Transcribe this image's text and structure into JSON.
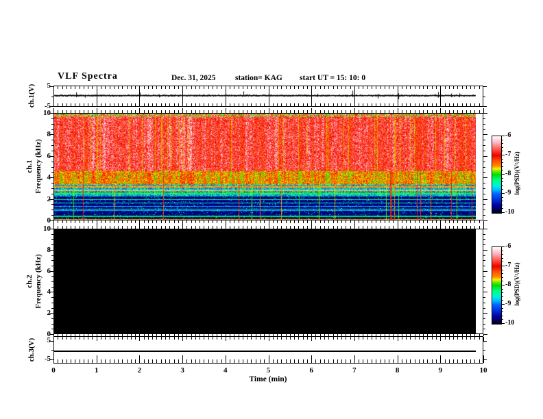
{
  "header": {
    "title": "VLF Spectra",
    "date": "Dec. 31, 2025",
    "station": "station= KAG",
    "start_ut": "start UT =  15: 10: 0"
  },
  "xaxis": {
    "label": "Time (min)",
    "tick_labels": [
      "0",
      "1",
      "2",
      "3",
      "4",
      "5",
      "6",
      "7",
      "8",
      "9",
      "10"
    ]
  },
  "panel_ch1_wave": {
    "axis_label": "ch.1(V)",
    "ytick_top": "5",
    "ytick_bottom": "-5"
  },
  "panel_ch1_spec": {
    "axis_label_line1": "ch.1",
    "axis_label_line2": "Frequency (kHz)",
    "ytick_labels": [
      "10",
      "8",
      "6",
      "4",
      "2",
      "0"
    ]
  },
  "panel_ch2_spec": {
    "axis_label_line1": "ch.2",
    "axis_label_line2": "Frequency (kHz)",
    "ytick_labels": [
      "10",
      "8",
      "6",
      "4",
      "2",
      "0"
    ]
  },
  "panel_ch3_wave": {
    "axis_label": "ch.3(V)",
    "ytick_top": "5",
    "ytick_bottom": "-5"
  },
  "colorbars": [
    {
      "label": "log(PSD)(V²/Hz)",
      "tick_labels": [
        "-6",
        "-7",
        "-8",
        "-9",
        "-10"
      ]
    },
    {
      "label": "log(PSD)(V²/Hz)",
      "tick_labels": [
        "-6",
        "-7",
        "-8",
        "-9",
        "-10"
      ]
    }
  ],
  "colors": {
    "background": "#ffffff",
    "foreground": "#000000",
    "ch2_fill": "#000000",
    "colormap": [
      {
        "value": -6.0,
        "hex": "#ffffff"
      },
      {
        "value": -6.35,
        "hex": "#ffb0c0"
      },
      {
        "value": -6.75,
        "hex": "#ff4433"
      },
      {
        "value": -7.0,
        "hex": "#ee0000"
      },
      {
        "value": -7.3,
        "hex": "#ff5500"
      },
      {
        "value": -7.55,
        "hex": "#ff8800"
      },
      {
        "value": -7.7,
        "hex": "#ffee00"
      },
      {
        "value": -7.85,
        "hex": "#55ee00"
      },
      {
        "value": -8.0,
        "hex": "#00dd00"
      },
      {
        "value": -8.3,
        "hex": "#00ff88"
      },
      {
        "value": -8.6,
        "hex": "#00eedd"
      },
      {
        "value": -8.8,
        "hex": "#00bbff"
      },
      {
        "value": -9.0,
        "hex": "#0066ff"
      },
      {
        "value": -9.3,
        "hex": "#0033dd"
      },
      {
        "value": -9.6,
        "hex": "#0000aa"
      },
      {
        "value": -10.0,
        "hex": "#000010"
      }
    ]
  },
  "chart_data": [
    {
      "panel": "ch1_waveform",
      "type": "line",
      "ylabel": "ch.1(V)",
      "xlim": [
        0,
        10
      ],
      "ylim": [
        -5,
        5
      ],
      "data_extent_min": [
        0,
        9.8
      ],
      "baseline_value": 0,
      "description": "Noisy waveform centered on 0 V (~±0.5 V) with sparse impulsive spikes reaching about ±2 to ±3 V"
    },
    {
      "panel": "ch1_spectrogram",
      "type": "heatmap",
      "ylabel": "ch.1 Frequency (kHz)",
      "xlabel": "Time (min)",
      "xlim": [
        0,
        10
      ],
      "ylim": [
        0,
        10
      ],
      "zlabel": "log(PSD)(V²/Hz)",
      "zlim": [
        -10,
        -6
      ],
      "data_extent_min": [
        0,
        9.8
      ],
      "bands": [
        {
          "freq_khz": [
            9.7,
            10
          ],
          "level_log_psd": -8.0,
          "appearance": "mixed green/cyan/yellow/blue speckle band at top edge"
        },
        {
          "freq_khz": [
            4.6,
            9.7
          ],
          "level_log_psd": -6.8,
          "appearance": "intense red with near-white vertical striations and sparse green column gaps"
        },
        {
          "freq_khz": [
            3.4,
            4.6
          ],
          "level_log_psd": -7.5,
          "appearance": "orange/yellow/green transition band"
        },
        {
          "freq_khz": [
            2.2,
            3.4
          ],
          "level_log_psd": -8.8,
          "appearance": "blue background with dense green vertical streaks and yellow-green horizontal lines near 2.5, 2.8 and 3.15 kHz"
        },
        {
          "freq_khz": [
            0,
            2.2
          ],
          "level_log_psd": -9.7,
          "appearance": "dark navy/black with narrow cyan horizontal lines near 0.9, 1.0, 1.6 and 1.9 kHz and a bright green line at 0 kHz"
        }
      ],
      "vertical_striation_period_min": 0.05
    },
    {
      "panel": "ch2_spectrogram",
      "type": "heatmap",
      "ylabel": "ch.2 Frequency (kHz)",
      "xlim": [
        0,
        10
      ],
      "ylim": [
        0,
        10
      ],
      "zlabel": "log(PSD)(V²/Hz)",
      "zlim": [
        -10,
        -6
      ],
      "data_extent_min": [
        0,
        9.8
      ],
      "uniform_level_log_psd": -10,
      "appearance": "no signal — uniform black"
    },
    {
      "panel": "ch3_waveform",
      "type": "line",
      "ylabel": "ch.3(V)",
      "xlim": [
        0,
        10
      ],
      "ylim": [
        -5,
        5
      ],
      "data_extent_min": [
        0,
        9.8
      ],
      "constant_value": 0,
      "appearance": "flat line at 0 V"
    }
  ]
}
